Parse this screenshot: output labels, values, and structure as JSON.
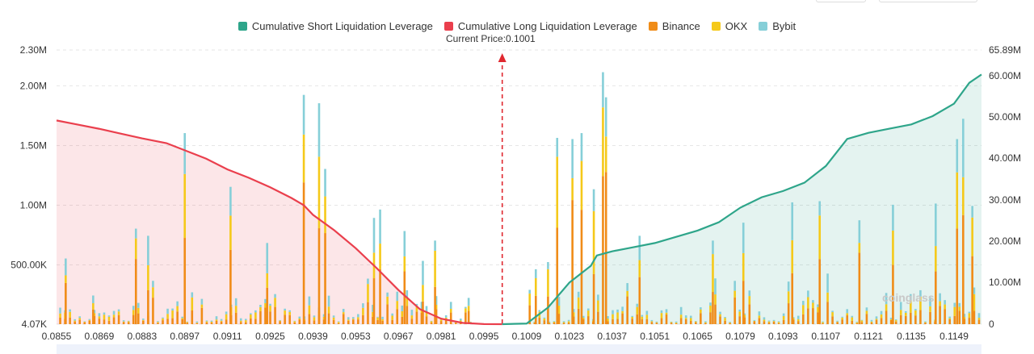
{
  "legend": [
    {
      "label": "Cumulative Short Liquidation Leverage",
      "color": "#2ea58a"
    },
    {
      "label": "Cumulative Long Liquidation Leverage",
      "color": "#ea3f4d"
    },
    {
      "label": "Binance",
      "color": "#f08c18"
    },
    {
      "label": "OKX",
      "color": "#f5c91a"
    },
    {
      "label": "Bybit",
      "color": "#86cfd8"
    }
  ],
  "current_price_label": "Current Price:0.1001",
  "watermark": "coinglass",
  "chart_data": {
    "type": "bar",
    "xlim": [
      0.0855,
      0.1158
    ],
    "x_ticks": [
      "0.0855",
      "0.0869",
      "0.0883",
      "0.0897",
      "0.0911",
      "0.0925",
      "0.0939",
      "0.0953",
      "0.0967",
      "0.0981",
      "0.0995",
      "0.1009",
      "0.1023",
      "0.1037",
      "0.1051",
      "0.1065",
      "0.1079",
      "0.1093",
      "0.1107",
      "0.1121",
      "0.1135",
      "0.1149"
    ],
    "y_left_ticks": [
      "2.30M",
      "2.00M",
      "1.50M",
      "1.00M",
      "500.00K",
      "4.07K"
    ],
    "y_right_ticks": [
      "65.89M",
      "60.00M",
      "50.00M",
      "40.00M",
      "30.00M",
      "20.00M",
      "10.00M",
      "0"
    ],
    "ylim_left": [
      4070,
      2300000
    ],
    "ylim_right": [
      0,
      65890000
    ],
    "current_price": 0.1001,
    "grid": true,
    "legend_position": "top-center",
    "long_cumulative": {
      "name": "Cumulative Long Liquidation Leverage",
      "color": "#ea3f4d",
      "x": [
        0.0855,
        0.0861,
        0.0869,
        0.0876,
        0.0883,
        0.0891,
        0.0897,
        0.0904,
        0.0911,
        0.0918,
        0.0925,
        0.0932,
        0.0936,
        0.0939,
        0.0946,
        0.0953,
        0.096,
        0.0967,
        0.0974,
        0.0981,
        0.0988,
        0.0995,
        0.1001
      ],
      "y": [
        1710000,
        1680000,
        1640000,
        1600000,
        1560000,
        1520000,
        1460000,
        1390000,
        1300000,
        1230000,
        1150000,
        1060000,
        1000000,
        920000,
        790000,
        640000,
        470000,
        290000,
        130000,
        50000,
        15000,
        5000,
        4070
      ]
    },
    "short_cumulative": {
      "name": "Cumulative Short Liquidation Leverage",
      "color": "#2ea58a",
      "x": [
        0.1001,
        0.1009,
        0.1016,
        0.1023,
        0.103,
        0.1032,
        0.1037,
        0.1044,
        0.1051,
        0.1058,
        0.1065,
        0.1072,
        0.1079,
        0.1086,
        0.1093,
        0.11,
        0.1107,
        0.1114,
        0.1121,
        0.1128,
        0.1135,
        0.1142,
        0.1149,
        0.1154,
        0.1158
      ],
      "y": [
        0,
        150000,
        4000000,
        10000000,
        14000000,
        16500000,
        17500000,
        18500000,
        19500000,
        21000000,
        22500000,
        24500000,
        28000000,
        30500000,
        32000000,
        34000000,
        38000000,
        44500000,
        46000000,
        47000000,
        48000000,
        50000000,
        53000000,
        58000000,
        60000000
      ]
    },
    "exchanges": [
      {
        "name": "Binance",
        "color": "#f08c18"
      },
      {
        "name": "OKX",
        "color": "#f5c91a"
      },
      {
        "name": "Bybit",
        "color": "#86cfd8"
      }
    ],
    "bars_left_peaks": [
      {
        "x": 0.0858,
        "value": 550000
      },
      {
        "x": 0.0867,
        "value": 240000
      },
      {
        "x": 0.0881,
        "value": 800000
      },
      {
        "x": 0.0885,
        "value": 740000
      },
      {
        "x": 0.0897,
        "value": 1600000
      },
      {
        "x": 0.0912,
        "value": 1150000
      },
      {
        "x": 0.0924,
        "value": 680000
      },
      {
        "x": 0.0936,
        "value": 1920000
      },
      {
        "x": 0.0941,
        "value": 1850000
      },
      {
        "x": 0.0943,
        "value": 1300000
      },
      {
        "x": 0.0959,
        "value": 890000
      },
      {
        "x": 0.0961,
        "value": 960000
      },
      {
        "x": 0.0969,
        "value": 780000
      },
      {
        "x": 0.0975,
        "value": 530000
      },
      {
        "x": 0.0979,
        "value": 700000
      },
      {
        "x": 0.099,
        "value": 220000
      }
    ],
    "bars_right_peaks": [
      {
        "x": 0.1012,
        "value": 460000
      },
      {
        "x": 0.1016,
        "value": 520000
      },
      {
        "x": 0.1019,
        "value": 1560000
      },
      {
        "x": 0.1024,
        "value": 1550000
      },
      {
        "x": 0.1027,
        "value": 1600000
      },
      {
        "x": 0.1031,
        "value": 1130000
      },
      {
        "x": 0.1034,
        "value": 2110000
      },
      {
        "x": 0.1035,
        "value": 1900000
      },
      {
        "x": 0.1046,
        "value": 740000
      },
      {
        "x": 0.107,
        "value": 700000
      },
      {
        "x": 0.108,
        "value": 850000
      },
      {
        "x": 0.1096,
        "value": 1020000
      },
      {
        "x": 0.1105,
        "value": 1030000
      },
      {
        "x": 0.1118,
        "value": 870000
      },
      {
        "x": 0.1129,
        "value": 1000000
      },
      {
        "x": 0.1143,
        "value": 1010000
      },
      {
        "x": 0.115,
        "value": 1550000
      },
      {
        "x": 0.1152,
        "value": 1720000
      },
      {
        "x": 0.1155,
        "value": 990000
      }
    ]
  }
}
